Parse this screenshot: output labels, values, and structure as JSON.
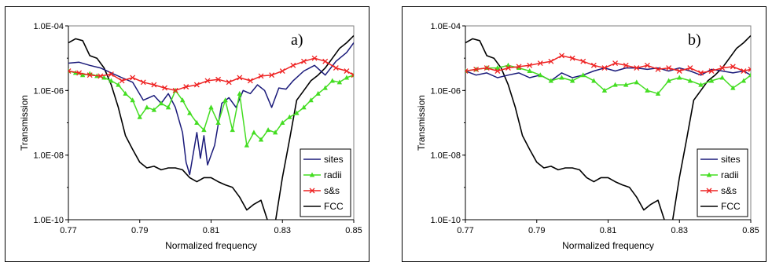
{
  "chart_data": [
    {
      "type": "line",
      "panel_label": "a)",
      "xlabel": "Normalized frequency",
      "ylabel": "Transmission",
      "xlim": [
        0.77,
        0.85
      ],
      "ylim_log10": [
        -10,
        -4
      ],
      "y_scale": "log",
      "x_ticks": [
        {
          "value": 0.77,
          "label": "0.77"
        },
        {
          "value": 0.79,
          "label": "0.79"
        },
        {
          "value": 0.81,
          "label": "0.81"
        },
        {
          "value": 0.83,
          "label": "0.83"
        },
        {
          "value": 0.85,
          "label": "0.85"
        }
      ],
      "y_ticks": [
        {
          "exp": -10,
          "label": "1.0E-10"
        },
        {
          "exp": -8,
          "label": "1.0E-08"
        },
        {
          "exp": -6,
          "label": "1.0E-06"
        },
        {
          "exp": -4,
          "label": "1.0E-04"
        }
      ],
      "legend_position": "bottom-right",
      "series": [
        {
          "name": "sites",
          "color": "#1a1a7a",
          "marker": "none",
          "x": [
            0.77,
            0.773,
            0.776,
            0.779,
            0.782,
            0.785,
            0.788,
            0.791,
            0.794,
            0.796,
            0.798,
            0.8,
            0.802,
            0.803,
            0.804,
            0.806,
            0.807,
            0.808,
            0.809,
            0.811,
            0.813,
            0.815,
            0.817,
            0.819,
            0.821,
            0.823,
            0.825,
            0.827,
            0.829,
            0.831,
            0.833,
            0.836,
            0.839,
            0.842,
            0.845,
            0.848,
            0.85
          ],
          "y": [
            7e-06,
            7.5e-06,
            6e-06,
            5e-06,
            3.5e-06,
            2.5e-06,
            1.8e-06,
            5e-07,
            7e-07,
            4e-07,
            8e-07,
            3e-07,
            5e-08,
            6e-09,
            2.5e-09,
            5e-08,
            8e-09,
            4e-08,
            5e-09,
            2e-08,
            4e-07,
            6e-07,
            3e-07,
            1e-06,
            8e-07,
            1.5e-06,
            1e-06,
            3e-07,
            1.2e-06,
            1.1e-06,
            2e-06,
            4e-06,
            6e-06,
            3e-06,
            8e-06,
            1.5e-05,
            3e-05
          ]
        },
        {
          "name": "radii",
          "color": "#44dd22",
          "marker": "triangle",
          "x": [
            0.77,
            0.772,
            0.774,
            0.776,
            0.778,
            0.78,
            0.782,
            0.784,
            0.786,
            0.788,
            0.79,
            0.792,
            0.794,
            0.796,
            0.798,
            0.8,
            0.802,
            0.804,
            0.806,
            0.808,
            0.81,
            0.812,
            0.814,
            0.816,
            0.818,
            0.82,
            0.822,
            0.824,
            0.826,
            0.828,
            0.83,
            0.832,
            0.834,
            0.836,
            0.838,
            0.84,
            0.842,
            0.844,
            0.846,
            0.848,
            0.85
          ],
          "y": [
            4e-06,
            3.5e-06,
            3e-06,
            3.3e-06,
            2.8e-06,
            2.5e-06,
            2e-06,
            1.5e-06,
            8e-07,
            5e-07,
            1.5e-07,
            3e-07,
            2.5e-07,
            4e-07,
            3e-07,
            1e-06,
            5e-07,
            2e-07,
            1e-07,
            6e-08,
            3e-07,
            1e-07,
            5e-07,
            6e-08,
            8e-07,
            2e-08,
            5e-08,
            3e-08,
            6e-08,
            5e-08,
            1e-07,
            1.5e-07,
            2e-07,
            3e-07,
            5e-07,
            8e-07,
            1.2e-06,
            2e-06,
            1.8e-06,
            2.5e-06,
            3e-06
          ]
        },
        {
          "name": "s&s",
          "color": "#ee2222",
          "marker": "x",
          "x": [
            0.77,
            0.773,
            0.776,
            0.779,
            0.782,
            0.785,
            0.788,
            0.791,
            0.794,
            0.797,
            0.8,
            0.803,
            0.806,
            0.809,
            0.812,
            0.815,
            0.818,
            0.821,
            0.824,
            0.827,
            0.83,
            0.833,
            0.836,
            0.839,
            0.842,
            0.845,
            0.848,
            0.85
          ],
          "y": [
            4e-06,
            3.5e-06,
            3e-06,
            2.8e-06,
            3.2e-06,
            2e-06,
            2.5e-06,
            1.8e-06,
            1.5e-06,
            1.2e-06,
            1e-06,
            1.3e-06,
            1.5e-06,
            2e-06,
            2.2e-06,
            1.8e-06,
            2.5e-06,
            2e-06,
            2.8e-06,
            3e-06,
            4e-06,
            6e-06,
            8e-06,
            1e-05,
            8e-06,
            5e-06,
            4e-06,
            3e-06
          ]
        },
        {
          "name": "FCC",
          "color": "#000000",
          "marker": "none",
          "x": [
            0.77,
            0.772,
            0.774,
            0.776,
            0.778,
            0.78,
            0.782,
            0.784,
            0.786,
            0.788,
            0.79,
            0.792,
            0.794,
            0.796,
            0.798,
            0.8,
            0.802,
            0.804,
            0.806,
            0.808,
            0.81,
            0.812,
            0.814,
            0.816,
            0.818,
            0.82,
            0.822,
            0.824,
            0.826,
            0.828,
            0.83,
            0.832,
            0.834,
            0.836,
            0.838,
            0.84,
            0.842,
            0.844,
            0.846,
            0.848,
            0.85
          ],
          "y": [
            3e-05,
            4e-05,
            3.5e-05,
            1.2e-05,
            1e-05,
            5e-06,
            1.5e-06,
            3e-07,
            4e-08,
            1.5e-08,
            6e-09,
            4e-09,
            4.5e-09,
            3.5e-09,
            4e-09,
            4e-09,
            3.5e-09,
            2e-09,
            1.5e-09,
            2e-09,
            2e-09,
            1.5e-09,
            1.2e-09,
            1e-09,
            5e-10,
            2e-10,
            3e-10,
            4e-10,
            5e-11,
            5e-11,
            2e-09,
            3e-08,
            5e-07,
            1e-06,
            2e-06,
            3e-06,
            5e-06,
            1e-05,
            2e-05,
            3e-05,
            5e-05
          ]
        }
      ]
    },
    {
      "type": "line",
      "panel_label": "b)",
      "xlabel": "Normalized frequency",
      "ylabel": "Transmission",
      "xlim": [
        0.77,
        0.85
      ],
      "ylim_log10": [
        -10,
        -4
      ],
      "y_scale": "log",
      "x_ticks": [
        {
          "value": 0.77,
          "label": "0.77"
        },
        {
          "value": 0.79,
          "label": "0.79"
        },
        {
          "value": 0.81,
          "label": "0.81"
        },
        {
          "value": 0.83,
          "label": "0.83"
        },
        {
          "value": 0.85,
          "label": "0.85"
        }
      ],
      "y_ticks": [
        {
          "exp": -10,
          "label": "1.0E-10"
        },
        {
          "exp": -8,
          "label": "1.0E-08"
        },
        {
          "exp": -6,
          "label": "1.0E-06"
        },
        {
          "exp": -4,
          "label": "1.0E-04"
        }
      ],
      "legend_position": "bottom-right",
      "series": [
        {
          "name": "sites",
          "color": "#1a1a7a",
          "marker": "none",
          "x": [
            0.77,
            0.773,
            0.776,
            0.779,
            0.782,
            0.785,
            0.788,
            0.791,
            0.794,
            0.797,
            0.8,
            0.803,
            0.806,
            0.809,
            0.812,
            0.815,
            0.818,
            0.821,
            0.824,
            0.827,
            0.83,
            0.833,
            0.836,
            0.839,
            0.842,
            0.845,
            0.848,
            0.85
          ],
          "y": [
            4e-06,
            3e-06,
            3.5e-06,
            2.5e-06,
            3e-06,
            3.5e-06,
            2.5e-06,
            3e-06,
            2e-06,
            3.5e-06,
            2.5e-06,
            3e-06,
            4e-06,
            5e-06,
            4e-06,
            5e-06,
            5e-06,
            4.5e-06,
            5e-06,
            4e-06,
            5e-06,
            4e-06,
            3e-06,
            4.5e-06,
            4e-06,
            3.5e-06,
            4e-06,
            3e-06
          ]
        },
        {
          "name": "radii",
          "color": "#44dd22",
          "marker": "triangle",
          "x": [
            0.77,
            0.773,
            0.776,
            0.779,
            0.782,
            0.785,
            0.788,
            0.791,
            0.794,
            0.797,
            0.8,
            0.803,
            0.806,
            0.809,
            0.812,
            0.815,
            0.818,
            0.821,
            0.824,
            0.827,
            0.83,
            0.833,
            0.836,
            0.839,
            0.842,
            0.845,
            0.848,
            0.85
          ],
          "y": [
            4e-06,
            4.5e-06,
            5e-06,
            5e-06,
            6e-06,
            5e-06,
            4e-06,
            3e-06,
            2e-06,
            2.5e-06,
            2e-06,
            3e-06,
            2e-06,
            1e-06,
            1.5e-06,
            1.5e-06,
            1.8e-06,
            1e-06,
            8e-07,
            2e-06,
            2.5e-06,
            2e-06,
            1.5e-06,
            2e-06,
            2.5e-06,
            1.2e-06,
            2e-06,
            3e-06
          ]
        },
        {
          "name": "s&s",
          "color": "#ee2222",
          "marker": "x",
          "x": [
            0.77,
            0.773,
            0.776,
            0.779,
            0.782,
            0.785,
            0.788,
            0.791,
            0.794,
            0.797,
            0.8,
            0.803,
            0.806,
            0.809,
            0.812,
            0.815,
            0.818,
            0.821,
            0.824,
            0.827,
            0.83,
            0.833,
            0.836,
            0.839,
            0.842,
            0.845,
            0.848,
            0.85
          ],
          "y": [
            4e-06,
            4.5e-06,
            5e-06,
            4e-06,
            5e-06,
            5.5e-06,
            6e-06,
            7e-06,
            8e-06,
            1.2e-05,
            1e-05,
            8e-06,
            6e-06,
            5e-06,
            7e-06,
            6e-06,
            5e-06,
            6e-06,
            4.5e-06,
            5e-06,
            4e-06,
            5e-06,
            3.5e-06,
            4e-06,
            5e-06,
            5.5e-06,
            4e-06,
            4.5e-06
          ]
        },
        {
          "name": "FCC",
          "color": "#000000",
          "marker": "none",
          "x": [
            0.77,
            0.772,
            0.774,
            0.776,
            0.778,
            0.78,
            0.782,
            0.784,
            0.786,
            0.788,
            0.79,
            0.792,
            0.794,
            0.796,
            0.798,
            0.8,
            0.802,
            0.804,
            0.806,
            0.808,
            0.81,
            0.812,
            0.814,
            0.816,
            0.818,
            0.82,
            0.822,
            0.824,
            0.826,
            0.828,
            0.83,
            0.832,
            0.834,
            0.836,
            0.838,
            0.84,
            0.842,
            0.844,
            0.846,
            0.848,
            0.85
          ],
          "y": [
            3e-05,
            4e-05,
            3.5e-05,
            1.2e-05,
            1e-05,
            5e-06,
            1.5e-06,
            3e-07,
            4e-08,
            1.5e-08,
            6e-09,
            4e-09,
            4.5e-09,
            3.5e-09,
            4e-09,
            4e-09,
            3.5e-09,
            2e-09,
            1.5e-09,
            2e-09,
            2e-09,
            1.5e-09,
            1.2e-09,
            1e-09,
            5e-10,
            2e-10,
            3e-10,
            4e-10,
            5e-11,
            5e-11,
            2e-09,
            3e-08,
            5e-07,
            1e-06,
            2e-06,
            3e-06,
            5e-06,
            1e-05,
            2e-05,
            3e-05,
            5e-05
          ]
        }
      ]
    }
  ]
}
